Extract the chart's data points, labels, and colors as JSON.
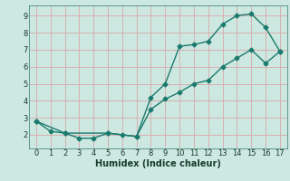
{
  "xlabel": "Humidex (Indice chaleur)",
  "ylabel": "",
  "background_color": "#cce8e0",
  "line_color": "#1a7a6e",
  "grid_color": "#d9b0b0",
  "xlim": [
    -0.5,
    17.5
  ],
  "ylim": [
    1.2,
    9.6
  ],
  "xticks": [
    0,
    1,
    2,
    3,
    4,
    5,
    6,
    7,
    8,
    9,
    10,
    11,
    12,
    13,
    14,
    15,
    16,
    17
  ],
  "yticks": [
    2,
    3,
    4,
    5,
    6,
    7,
    8,
    9
  ],
  "line1_x": [
    0,
    1,
    2,
    3,
    4,
    5,
    6,
    7,
    8,
    9,
    10,
    11,
    12,
    13,
    14,
    15,
    16,
    17
  ],
  "line1_y": [
    2.8,
    2.2,
    2.1,
    1.8,
    1.8,
    2.1,
    2.0,
    1.9,
    4.2,
    5.0,
    7.2,
    7.3,
    7.5,
    8.5,
    9.0,
    9.1,
    8.3,
    6.9
  ],
  "line2_x": [
    0,
    2,
    5,
    7,
    8,
    9,
    10,
    11,
    12,
    13,
    14,
    15,
    16,
    17
  ],
  "line2_y": [
    2.8,
    2.1,
    2.1,
    1.9,
    3.5,
    4.1,
    4.5,
    5.0,
    5.2,
    6.0,
    6.5,
    7.0,
    6.2,
    6.9
  ],
  "marker_size": 2.5,
  "line_width": 1.0,
  "font_size_label": 7,
  "font_size_tick": 6
}
